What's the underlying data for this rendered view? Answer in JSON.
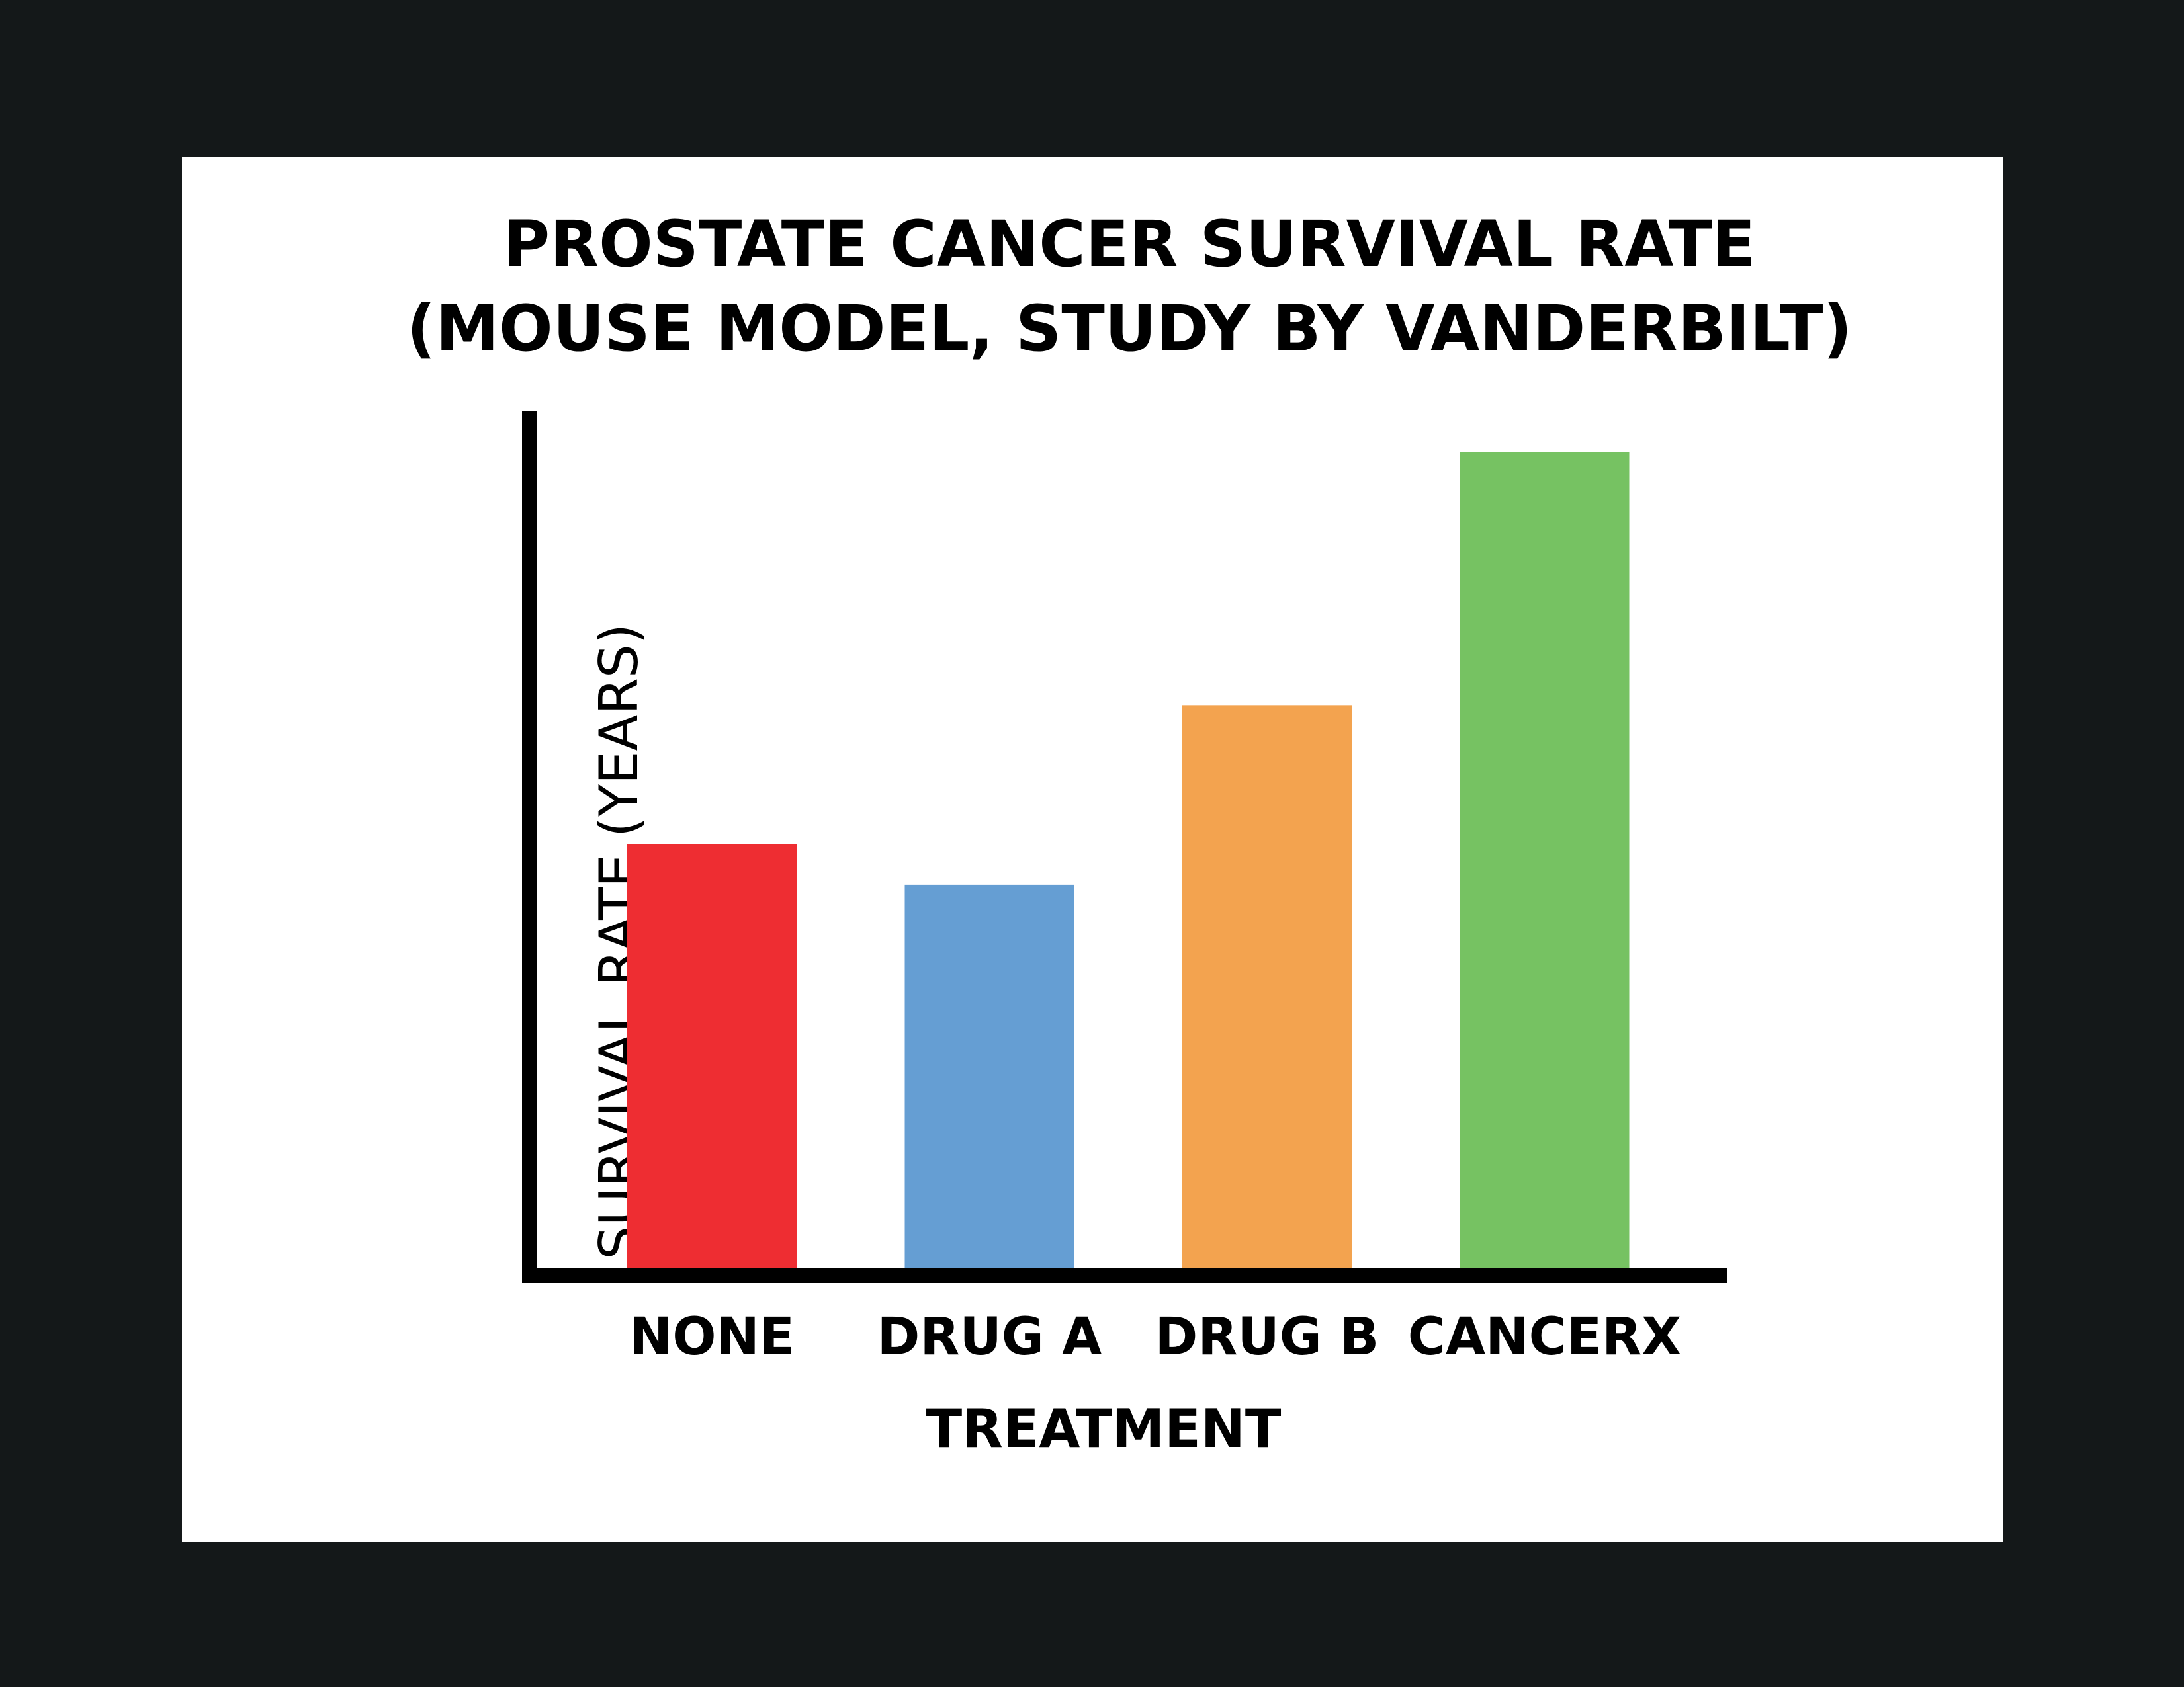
{
  "chart_data": {
    "type": "bar",
    "title": "PROSTATE CANCER SURVIVAL RATE",
    "subtitle": "(MOUSE MODEL, STUDY BY VANDERBILT)",
    "xlabel": "TREATMENT",
    "ylabel": "SURVIVAL RATE (YEARS)",
    "categories": [
      "NONE",
      "DRUG A",
      "DRUG B",
      "CANCERX"
    ],
    "values": [
      0.52,
      0.47,
      0.69,
      1.0
    ],
    "ylim": [
      0,
      1.05
    ],
    "y_ticks_shown": false,
    "grid": false,
    "legend": "none",
    "colors": [
      "#ee2d32",
      "#659ed3",
      "#f3a34f",
      "#76c262"
    ],
    "axis_color": "#000000",
    "frame_color": "#141819",
    "background": "#ffffff"
  }
}
